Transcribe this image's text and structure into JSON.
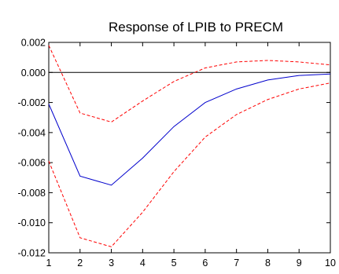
{
  "chart_data": {
    "type": "line",
    "title": "Response of LPIB to PRECM",
    "xlabel": "",
    "ylabel": "",
    "x": [
      1,
      2,
      3,
      4,
      5,
      6,
      7,
      8,
      9,
      10
    ],
    "xlim": [
      1,
      10
    ],
    "ylim": [
      -0.012,
      0.002
    ],
    "y_ticks": [
      0.002,
      0.0,
      -0.002,
      -0.004,
      -0.006,
      -0.008,
      -0.01,
      -0.012
    ],
    "y_tick_labels": [
      "0.002",
      "0.000",
      "-0.002",
      "-0.004",
      "-0.006",
      "-0.008",
      "-0.010",
      "-0.012"
    ],
    "x_tick_labels": [
      "1",
      "2",
      "3",
      "4",
      "5",
      "6",
      "7",
      "8",
      "9",
      "10"
    ],
    "zero_line": true,
    "grid": false,
    "legend": "none",
    "series": [
      {
        "role": "response",
        "color": "#0000cc",
        "dash": "solid",
        "values": [
          -0.0021,
          -0.0069,
          -0.0075,
          -0.0057,
          -0.0036,
          -0.002,
          -0.0011,
          -0.0005,
          -0.0002,
          -0.0001
        ]
      },
      {
        "role": "upper-band",
        "color": "#ff0000",
        "dash": "dashed",
        "values": [
          0.0018,
          -0.0027,
          -0.0033,
          -0.0019,
          -0.0006,
          0.0003,
          0.0007,
          0.0008,
          0.0007,
          0.0005
        ]
      },
      {
        "role": "lower-band",
        "color": "#ff0000",
        "dash": "dashed",
        "values": [
          -0.0059,
          -0.011,
          -0.0116,
          -0.0093,
          -0.0066,
          -0.0043,
          -0.0028,
          -0.0018,
          -0.0011,
          -0.0007
        ]
      }
    ]
  }
}
